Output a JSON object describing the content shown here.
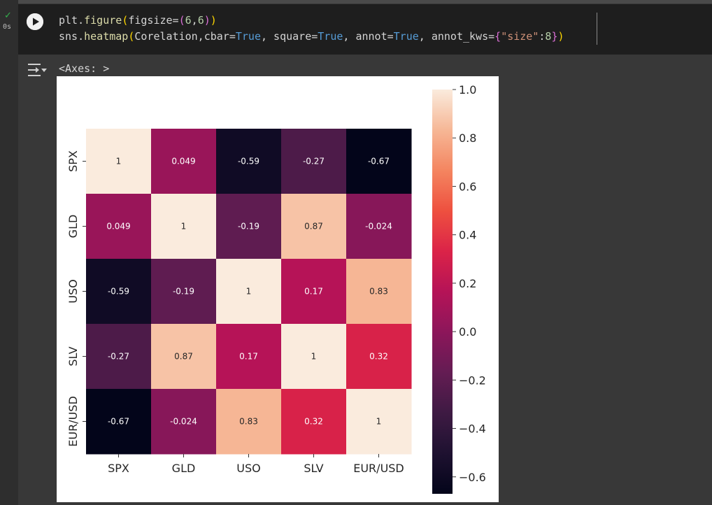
{
  "cell": {
    "status": "completed",
    "exec_time": "0s",
    "code_line1": [
      {
        "t": "plt.",
        "c": "c-txt"
      },
      {
        "t": "figure",
        "c": "c-fn"
      },
      {
        "t": "(",
        "c": "c-p1"
      },
      {
        "t": "figsize=",
        "c": "c-txt"
      },
      {
        "t": "(",
        "c": "c-p2"
      },
      {
        "t": "6",
        "c": "c-num"
      },
      {
        "t": ",",
        "c": "c-txt"
      },
      {
        "t": "6",
        "c": "c-num"
      },
      {
        "t": ")",
        "c": "c-p2"
      },
      {
        "t": ")",
        "c": "c-p1"
      }
    ],
    "code_line2": [
      {
        "t": "sns.",
        "c": "c-txt"
      },
      {
        "t": "heatmap",
        "c": "c-fn"
      },
      {
        "t": "(",
        "c": "c-p1"
      },
      {
        "t": "Corelation,cbar=",
        "c": "c-txt"
      },
      {
        "t": "True",
        "c": "c-kw"
      },
      {
        "t": ", square=",
        "c": "c-txt"
      },
      {
        "t": "True",
        "c": "c-kw"
      },
      {
        "t": ", annot=",
        "c": "c-txt"
      },
      {
        "t": "True",
        "c": "c-kw"
      },
      {
        "t": ", annot_kws=",
        "c": "c-txt"
      },
      {
        "t": "{",
        "c": "c-p2"
      },
      {
        "t": "\"size\"",
        "c": "c-str"
      },
      {
        "t": ":",
        "c": "c-txt"
      },
      {
        "t": "8",
        "c": "c-num"
      },
      {
        "t": "}",
        "c": "c-p2"
      },
      {
        "t": ")",
        "c": "c-p1"
      }
    ],
    "output_text": "<Axes: >"
  },
  "chart_data": {
    "type": "heatmap",
    "labels": [
      "SPX",
      "GLD",
      "USO",
      "SLV",
      "EUR/USD"
    ],
    "values": [
      [
        1,
        0.049,
        -0.59,
        -0.27,
        -0.67
      ],
      [
        0.049,
        1,
        -0.19,
        0.87,
        -0.024
      ],
      [
        -0.59,
        -0.19,
        1,
        0.17,
        0.83
      ],
      [
        -0.27,
        0.87,
        0.17,
        1,
        0.32
      ],
      [
        -0.67,
        -0.024,
        0.83,
        0.32,
        1
      ]
    ],
    "annotations": [
      [
        "1",
        "0.049",
        "-0.59",
        "-0.27",
        "-0.67"
      ],
      [
        "0.049",
        "1",
        "-0.19",
        "0.87",
        "-0.024"
      ],
      [
        "-0.59",
        "-0.19",
        "1",
        "0.17",
        "0.83"
      ],
      [
        "-0.27",
        "0.87",
        "0.17",
        "1",
        "0.32"
      ],
      [
        "-0.67",
        "-0.024",
        "0.83",
        "0.32",
        "1"
      ]
    ],
    "colormap": "rocket",
    "vmin": -0.67,
    "vmax": 1,
    "colorbar_ticks": [
      1.0,
      0.8,
      0.6,
      0.4,
      0.2,
      0.0,
      -0.2,
      -0.4,
      -0.6
    ],
    "colorbar_tick_labels": [
      "1.0",
      "0.8",
      "0.6",
      "0.4",
      "0.2",
      "0.0",
      "−0.2",
      "−0.4",
      "−0.6"
    ]
  }
}
